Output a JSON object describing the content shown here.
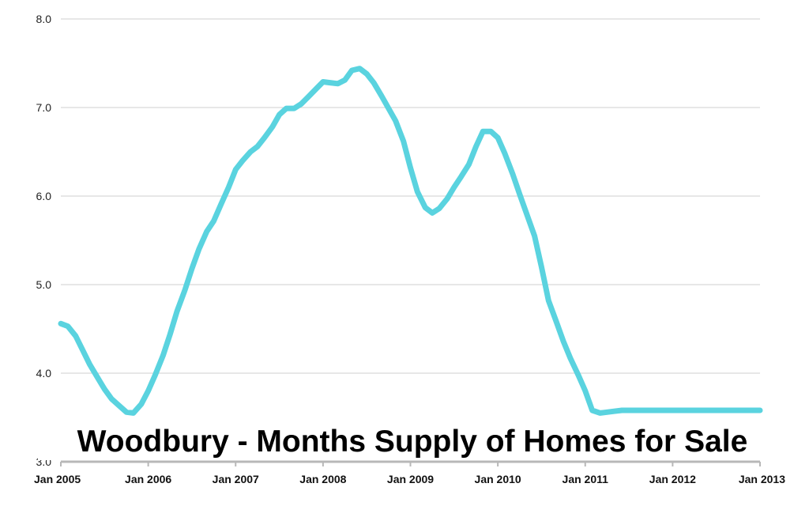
{
  "chart_data": {
    "type": "line",
    "title": "Woodbury - Months Supply of Homes for Sale",
    "xlabel": "",
    "ylabel": "",
    "ylim": [
      3.0,
      8.0
    ],
    "yticks": [
      "3.0",
      "4.0",
      "5.0",
      "6.0",
      "7.0",
      "8.0"
    ],
    "xticks": [
      "Jan 2005",
      "Jan 2006",
      "Jan 2007",
      "Jan 2008",
      "Jan 2009",
      "Jan 2010",
      "Jan 2011",
      "Jan 2012",
      "Jan 2013"
    ],
    "grid": true,
    "line_color": "#5ad3df",
    "series": [
      {
        "x": [
          2005.0,
          2005.08,
          2005.17,
          2005.25,
          2005.33,
          2005.42,
          2005.5,
          2005.58,
          2005.67,
          2005.75,
          2005.83,
          2005.92,
          2006.0,
          2006.08,
          2006.17,
          2006.25,
          2006.33,
          2006.42,
          2006.5,
          2006.58,
          2006.67,
          2006.75,
          2006.83,
          2006.92,
          2007.0,
          2007.08,
          2007.17,
          2007.25,
          2007.33,
          2007.42,
          2007.5,
          2007.58,
          2007.67,
          2007.75,
          2007.83,
          2007.92,
          2008.0,
          2008.08,
          2008.17,
          2008.25,
          2008.33,
          2008.42,
          2008.5,
          2008.58,
          2008.67,
          2008.75,
          2008.83,
          2008.92,
          2009.0,
          2009.08,
          2009.17,
          2009.25,
          2009.33,
          2009.42,
          2009.5,
          2009.58,
          2009.67,
          2009.75,
          2009.83,
          2009.92,
          2010.0,
          2010.08,
          2010.17,
          2010.25,
          2010.33,
          2010.42,
          2010.5,
          2010.58,
          2010.67,
          2010.75,
          2010.83,
          2010.92,
          2011.0,
          2011.08,
          2011.17,
          2011.25,
          2011.33,
          2011.42,
          2011.5,
          2011.58,
          2011.67,
          2011.75,
          2011.83,
          2011.92,
          2012.0,
          2012.08,
          2012.17,
          2012.25,
          2012.33,
          2012.42,
          2012.5,
          2012.58,
          2012.67,
          2012.75,
          2012.83,
          2012.92,
          2013.0
        ],
        "values": [
          4.56,
          4.53,
          4.42,
          4.26,
          4.1,
          3.95,
          3.82,
          3.71,
          3.63,
          3.56,
          3.55,
          3.65,
          3.8,
          3.98,
          4.2,
          4.44,
          4.7,
          4.94,
          5.18,
          5.4,
          5.6,
          5.72,
          5.9,
          6.1,
          6.3,
          6.4,
          6.5,
          6.56,
          6.66,
          6.78,
          6.92,
          6.99,
          6.99,
          7.04,
          7.12,
          7.21,
          7.29,
          7.28,
          7.27,
          7.31,
          7.42,
          7.44,
          7.38,
          7.28,
          7.13,
          6.99,
          6.85,
          6.62,
          6.32,
          6.05,
          5.87,
          5.81,
          5.86,
          5.97,
          6.1,
          6.22,
          6.36,
          6.56,
          6.73,
          6.73,
          6.66,
          6.48,
          6.25,
          6.02,
          5.8,
          5.55,
          5.2,
          4.82,
          4.58,
          4.36,
          4.17,
          3.98,
          3.8,
          3.58,
          3.55,
          3.56,
          3.57,
          3.58,
          3.58,
          3.58,
          3.58,
          3.58,
          3.58,
          3.58,
          3.58,
          3.58,
          3.58,
          3.58,
          3.58,
          3.58,
          3.58,
          3.58,
          3.58,
          3.58,
          3.58,
          3.58,
          3.58
        ]
      }
    ]
  }
}
